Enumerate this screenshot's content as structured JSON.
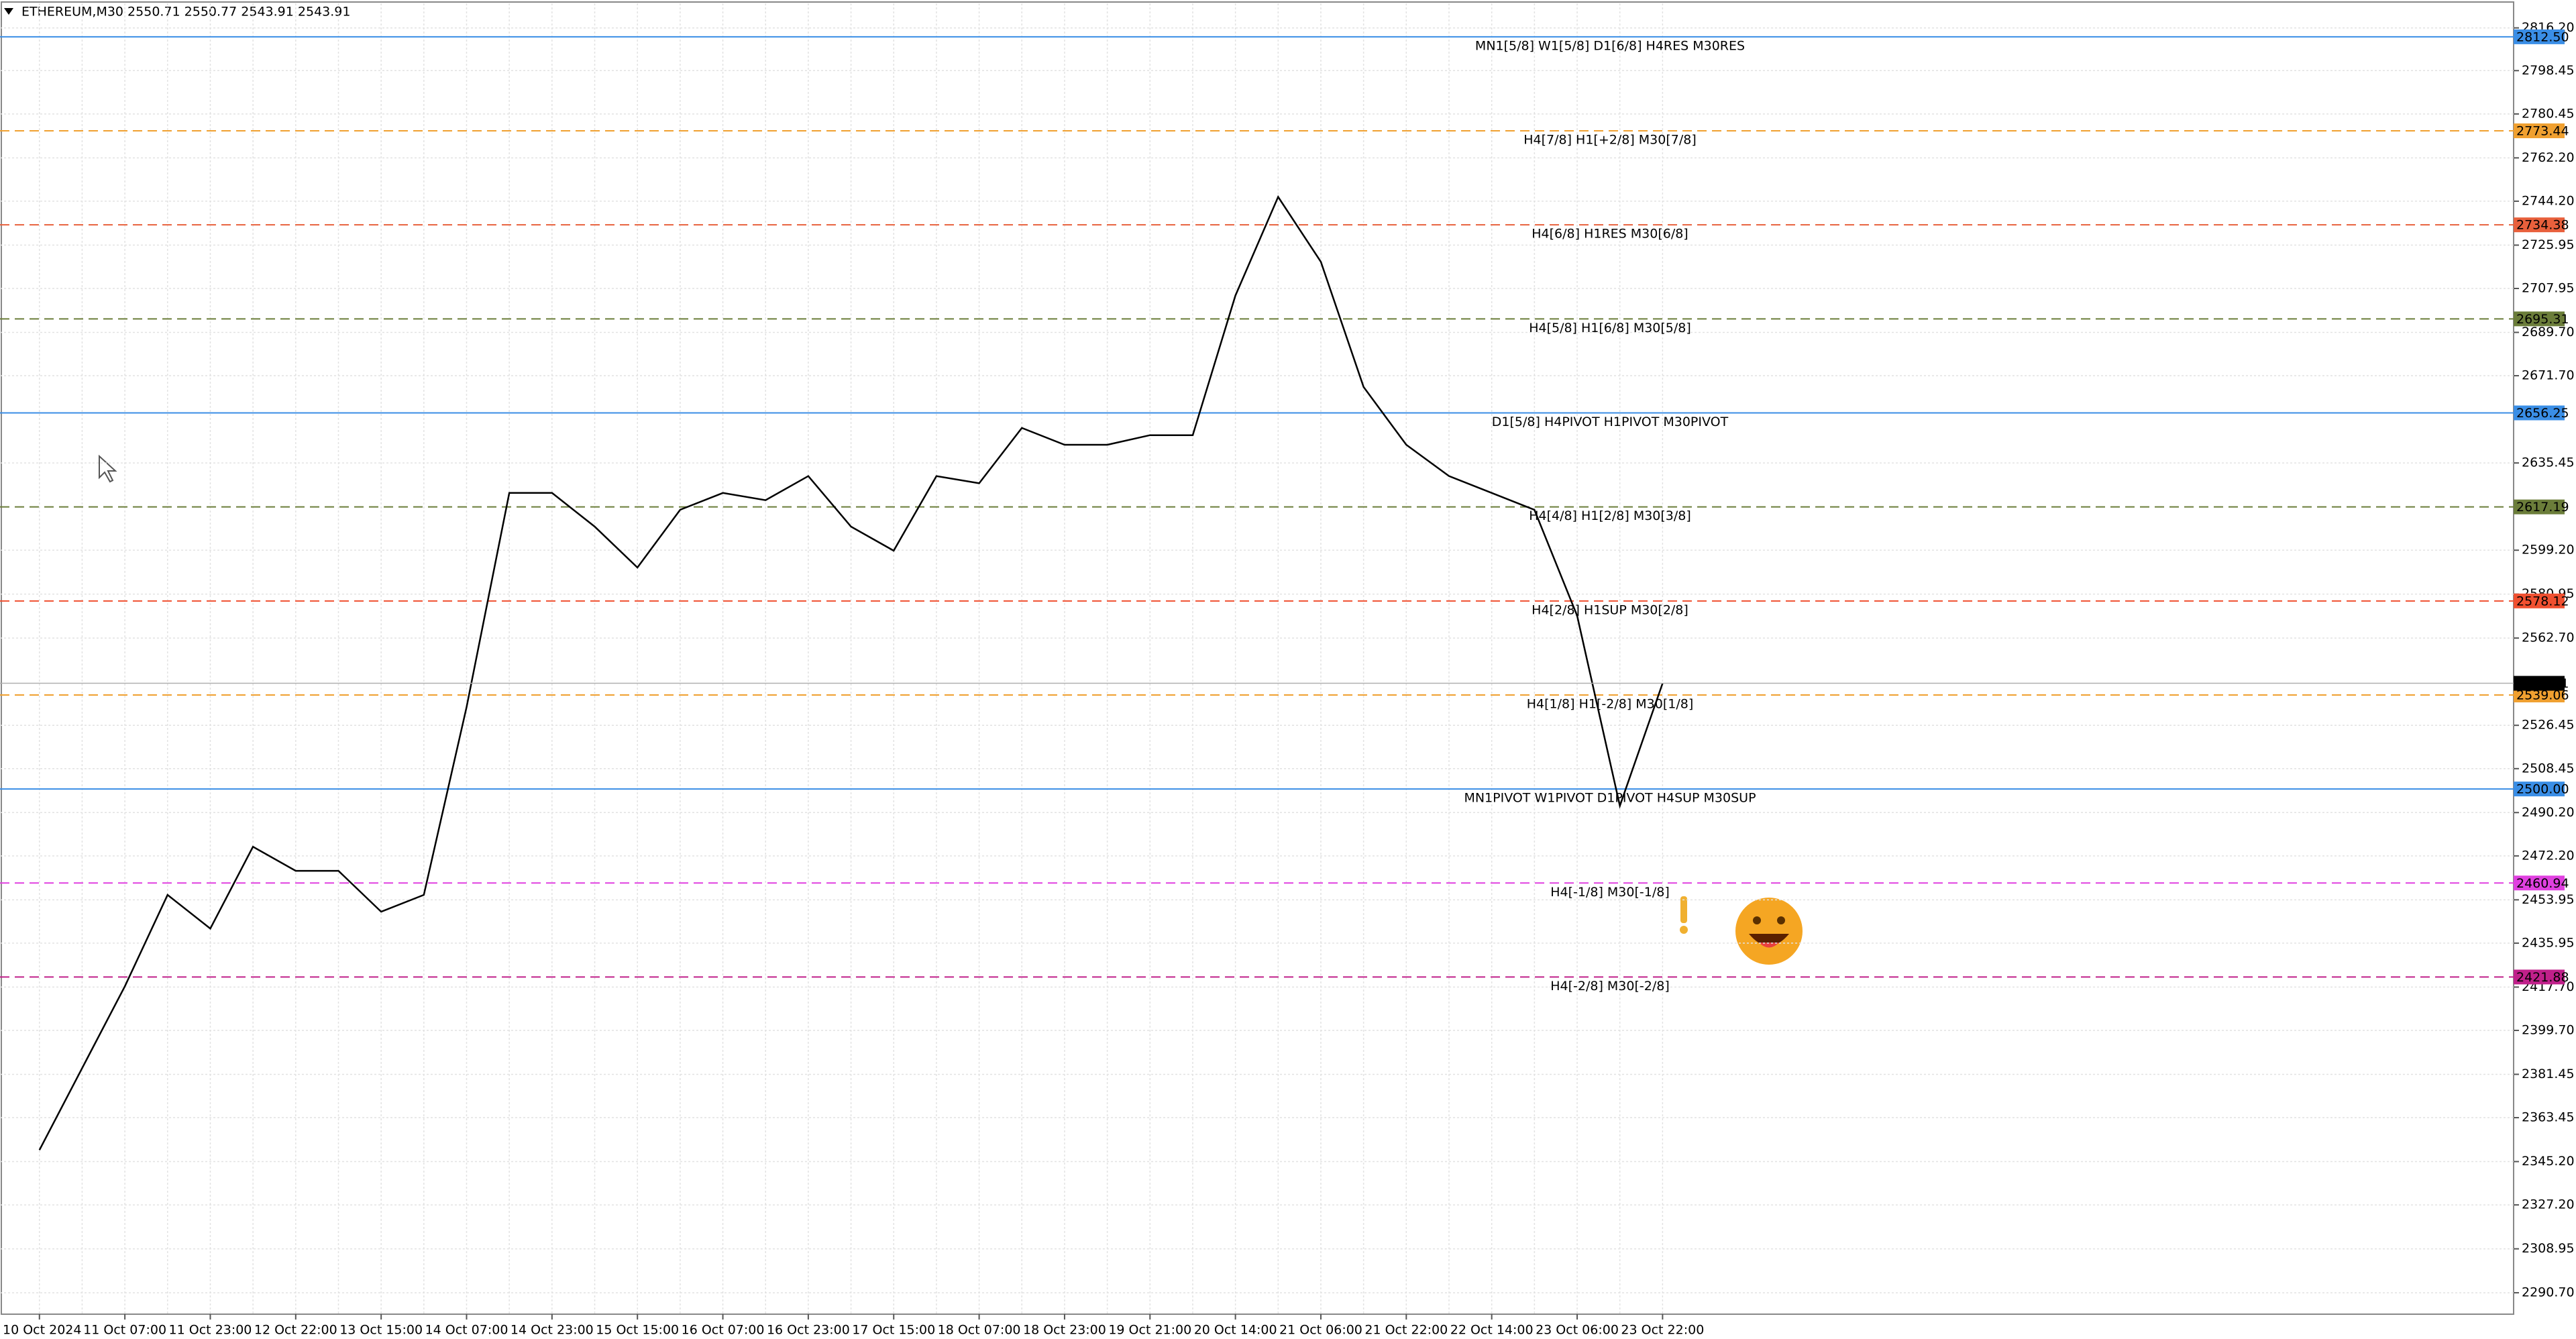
{
  "chart_data": {
    "type": "line",
    "title": "ETHEREUM,M30  2550.71 2550.77 2543.91 2543.91",
    "categories": [
      "10 Oct 2024",
      null,
      "11 Oct 07:00",
      null,
      "11 Oct 23:00",
      null,
      "12 Oct 22:00",
      null,
      "13 Oct 15:00",
      null,
      "14 Oct 07:00",
      null,
      "14 Oct 23:00",
      null,
      "15 Oct 15:00",
      null,
      "16 Oct 07:00",
      null,
      "16 Oct 23:00",
      null,
      "17 Oct 15:00",
      null,
      "18 Oct 07:00",
      null,
      "18 Oct 23:00",
      null,
      "19 Oct 21:00",
      null,
      "20 Oct 14:00",
      null,
      "21 Oct 06:00",
      null,
      "21 Oct 22:00",
      null,
      "22 Oct 14:00",
      null,
      "23 Oct 06:00",
      null,
      "23 Oct 22:00"
    ],
    "values": [
      2350,
      2384,
      2418,
      2456,
      2442,
      2476,
      2466,
      2466,
      2449,
      2456,
      2534,
      2623,
      2623,
      2609,
      2592,
      2616,
      2623,
      2620,
      2630,
      2609,
      2599,
      2630,
      2627,
      2650,
      2643,
      2643,
      2647,
      2647,
      2705,
      2746,
      2719,
      2667,
      2643,
      2630,
      2623,
      2616,
      2572,
      2493,
      2543.91
    ],
    "color": "#000000",
    "ylim": [
      2281.8,
      2826.4
    ],
    "yticks": [
      {
        "value": 2816.2,
        "label": "2816.20"
      },
      {
        "value": 2798.45,
        "label": "2798.45"
      },
      {
        "value": 2780.45,
        "label": "2780.45"
      },
      {
        "value": 2762.2,
        "label": "2762.20"
      },
      {
        "value": 2744.2,
        "label": "2744.20"
      },
      {
        "value": 2725.95,
        "label": "2725.95"
      },
      {
        "value": 2707.95,
        "label": "2707.95"
      },
      {
        "value": 2689.7,
        "label": "2689.70"
      },
      {
        "value": 2671.7,
        "label": "2671.70"
      },
      {
        "value": 2635.45,
        "label": "2635.45"
      },
      {
        "value": 2599.2,
        "label": "2599.20"
      },
      {
        "value": 2580.95,
        "label": "2580.95"
      },
      {
        "value": 2562.7,
        "label": "2562.70"
      },
      {
        "value": 2526.45,
        "label": "2526.45"
      },
      {
        "value": 2508.45,
        "label": "2508.45"
      },
      {
        "value": 2490.2,
        "label": "2490.20"
      },
      {
        "value": 2472.2,
        "label": "2472.20"
      },
      {
        "value": 2453.95,
        "label": "2453.95"
      },
      {
        "value": 2435.95,
        "label": "2435.95"
      },
      {
        "value": 2417.7,
        "label": "2417.70"
      },
      {
        "value": 2399.7,
        "label": "2399.70"
      },
      {
        "value": 2381.45,
        "label": "2381.45"
      },
      {
        "value": 2363.45,
        "label": "2363.45"
      },
      {
        "value": 2345.2,
        "label": "2345.20"
      },
      {
        "value": 2327.2,
        "label": "2327.20"
      },
      {
        "value": 2308.95,
        "label": "2308.95"
      },
      {
        "value": 2290.7,
        "label": "2290.70"
      }
    ],
    "grid": true,
    "last_price": 2543.91,
    "levels": {
      "values": [
        2812.5,
        2773.44,
        2734.38,
        2695.31,
        2656.25,
        2617.19,
        2578.12,
        2539.06,
        2500,
        2460.94,
        2421.88
      ],
      "value_labels": [
        "2812.50",
        "2773.44",
        "2734.38",
        "2695.31",
        "2656.25",
        "2617.19",
        "2578.12",
        "2539.06",
        "2500.00",
        "2460.94",
        "2421.88"
      ],
      "names": [
        "MN1[5/8] W1[5/8] D1[6/8] H4RES M30RES",
        "H4[7/8] H1[+2/8] M30[7/8]",
        "H4[6/8] H1RES M30[6/8]",
        "H4[5/8] H1[6/8] M30[5/8]",
        "D1[5/8] H4PIVOT H1PIVOT M30PIVOT",
        "H4[4/8] H1[2/8] M30[3/8]",
        "H4[2/8] H1SUP M30[2/8]",
        "H4[1/8] H1[-2/8] M30[1/8]",
        "MN1PIVOT W1PIVOT D1PIVOT H4SUP M30SUP",
        "H4[-1/8] M30[-1/8]",
        "H4[-2/8] M30[-2/8]"
      ],
      "colors": [
        "#3a8ee6",
        "#f0a030",
        "#e8603c",
        "#6b7d3a",
        "#3a8ee6",
        "#6b7d3a",
        "#f05030",
        "#f0a030",
        "#3a8ee6",
        "#e040e0",
        "#c0208a"
      ],
      "dashed": [
        false,
        true,
        true,
        true,
        false,
        true,
        true,
        true,
        false,
        true,
        true
      ]
    }
  }
}
